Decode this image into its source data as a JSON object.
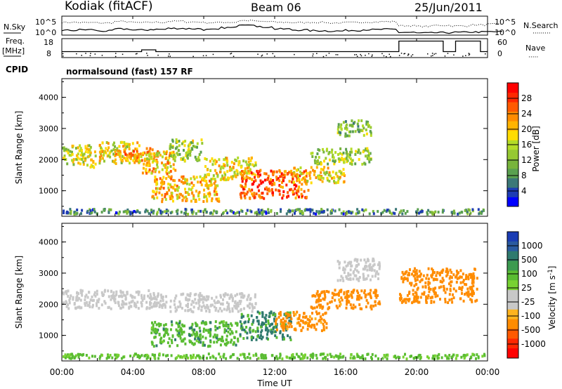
{
  "header": {
    "station": "Kodiak (fitACF)",
    "beam": "Beam 06",
    "date": "25/Jun/2011"
  },
  "strip": {
    "nsky_label": "N.Sky",
    "nsearch_label": "N.Search",
    "noise_ticks": [
      "10^5",
      "10^0"
    ],
    "freq_label": "Freq.",
    "freq_unit": "[MHz]",
    "freq_ticks": [
      "18",
      "8"
    ],
    "nave_label": "Nave",
    "nave_ticks": [
      "60",
      "0"
    ],
    "cpid_label": "CPID",
    "cpid_value": "normalsound (fast) 157 RF"
  },
  "colors": {
    "power": [
      "#0000ff",
      "#1e3cb4",
      "#3c7878",
      "#5aa050",
      "#78b43c",
      "#96c832",
      "#b4dc28",
      "#ffdc00",
      "#ffb400",
      "#ff8c00",
      "#ff5a00",
      "#ff2800",
      "#ff0000"
    ],
    "velocity": [
      "#1a3cb4",
      "#2a5aa0",
      "#2f7a6e",
      "#3c9a50",
      "#5abc32",
      "#78d232",
      "#c8c8c8",
      "#c8c8c8",
      "#ffb41e",
      "#ff8c00",
      "#ff5a00",
      "#ff2800",
      "#ff0000"
    ]
  },
  "chart_data": [
    {
      "type": "heatmap",
      "name": "power",
      "ylabel": "Slant Range [km]",
      "y_ticks": [
        "1000",
        "2000",
        "3000",
        "4000"
      ],
      "ylim": [
        180,
        4600
      ],
      "colorbar_label": "Power [dB]",
      "colorbar_ticks": [
        "4",
        "8",
        "12",
        "16",
        "20",
        "24",
        "28"
      ],
      "colorbar_range": [
        0,
        32
      ],
      "features": [
        {
          "x": [
            0.0,
            2.0
          ],
          "range": [
            1700,
            2500
          ],
          "value": 16
        },
        {
          "x": [
            2.0,
            4.5
          ],
          "range": [
            1800,
            2600
          ],
          "value": 18
        },
        {
          "x": [
            3.0,
            5.5
          ],
          "range": [
            1900,
            2400
          ],
          "value": 22
        },
        {
          "x": [
            4.5,
            6.5
          ],
          "range": [
            1500,
            2300
          ],
          "value": 20
        },
        {
          "x": [
            5.0,
            9.0
          ],
          "range": [
            600,
            1500
          ],
          "value": 20
        },
        {
          "x": [
            6.0,
            8.0
          ],
          "range": [
            1900,
            2700
          ],
          "value": 14
        },
        {
          "x": [
            8.0,
            11.0
          ],
          "range": [
            1300,
            2100
          ],
          "value": 18
        },
        {
          "x": [
            10.0,
            14.0
          ],
          "range": [
            700,
            1700
          ],
          "value": 26
        },
        {
          "x": [
            13.0,
            16.0
          ],
          "range": [
            1200,
            1800
          ],
          "value": 18
        },
        {
          "x": [
            14.0,
            17.5
          ],
          "range": [
            1800,
            2400
          ],
          "value": 14
        },
        {
          "x": [
            15.5,
            17.5
          ],
          "range": [
            2700,
            3300
          ],
          "value": 12
        },
        {
          "x": [
            0.0,
            24.0
          ],
          "range": [
            200,
            450
          ],
          "value": 8
        }
      ]
    },
    {
      "type": "heatmap",
      "name": "velocity",
      "ylabel": "Slant Range [km]",
      "y_ticks": [
        "1000",
        "2000",
        "3000",
        "4000"
      ],
      "ylim": [
        180,
        4600
      ],
      "colorbar_label": "Velocity [m s^-1]",
      "colorbar_ticks": [
        "1000",
        "500",
        "100",
        "25",
        "-25",
        "-100",
        "-500",
        "-1000"
      ],
      "features": [
        {
          "x": [
            0.0,
            6.0
          ],
          "range": [
            1800,
            2500
          ],
          "value": 0
        },
        {
          "x": [
            6.0,
            11.0
          ],
          "range": [
            1700,
            2400
          ],
          "value": 0
        },
        {
          "x": [
            5.0,
            10.0
          ],
          "range": [
            600,
            1500
          ],
          "value": 80
        },
        {
          "x": [
            10.0,
            13.0
          ],
          "range": [
            800,
            1800
          ],
          "value": 120
        },
        {
          "x": [
            12.0,
            15.0
          ],
          "range": [
            1100,
            1800
          ],
          "value": -150
        },
        {
          "x": [
            14.0,
            18.0
          ],
          "range": [
            1800,
            2500
          ],
          "value": -150
        },
        {
          "x": [
            15.5,
            18.0
          ],
          "range": [
            2700,
            3500
          ],
          "value": 0
        },
        {
          "x": [
            19.0,
            23.5
          ],
          "range": [
            2000,
            3200
          ],
          "value": -200
        },
        {
          "x": [
            0.0,
            24.0
          ],
          "range": [
            200,
            450
          ],
          "value": 60
        }
      ]
    }
  ],
  "x_axis": {
    "label": "Time UT",
    "ticks": [
      "00:00",
      "04:00",
      "08:00",
      "12:00",
      "16:00",
      "20:00",
      "00:00"
    ]
  },
  "noise_series": {
    "sky": [
      3.6,
      3.5,
      3.4,
      3.8,
      3.5,
      3.6,
      3.9,
      3.7,
      3.5,
      3.6,
      4.1,
      3.8,
      3.6,
      3.5,
      3.6,
      3.4,
      3.5,
      3.7,
      3.8,
      2.6,
      2.4,
      2.7,
      2.5,
      2.8,
      3.0
    ],
    "search": [
      1.2,
      1.4,
      1.0,
      1.6,
      1.3,
      1.5,
      1.8,
      1.7,
      1.4,
      2.0,
      3.0,
      2.2,
      1.6,
      1.3,
      1.1,
      1.0,
      1.2,
      1.4,
      1.5,
      0.6,
      0.4,
      0.5,
      0.6,
      0.7,
      0.8
    ]
  },
  "freq_series": {
    "hours": [
      0,
      4.5,
      4.5,
      5.3,
      5.3,
      19.0,
      19.0,
      21.5,
      21.5,
      22.2,
      22.2,
      23.6,
      23.6,
      24
    ],
    "mhz": [
      11.0,
      11.0,
      12.0,
      12.0,
      11.0,
      11.0,
      17.0,
      17.0,
      11.0,
      11.0,
      17.0,
      17.0,
      11.0,
      11.0
    ]
  }
}
